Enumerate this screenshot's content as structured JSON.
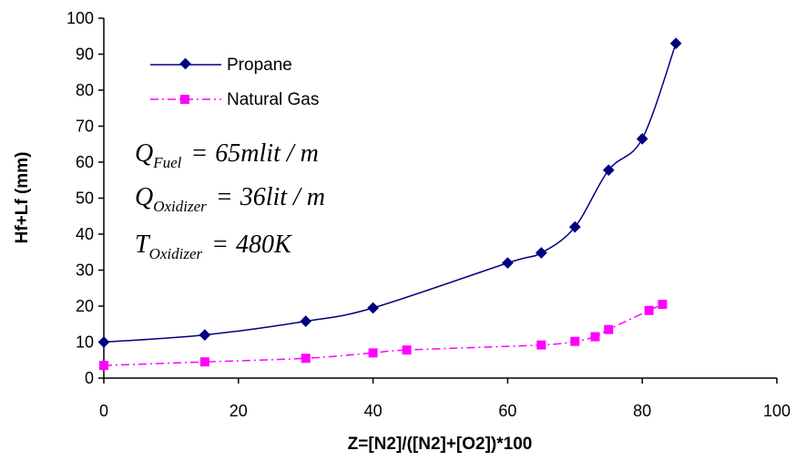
{
  "chart_data": {
    "type": "line",
    "xlabel": "Z=[N2]/([N2]+[O2])*100",
    "ylabel": "Hf+Lf (mm)",
    "xlim": [
      0,
      100
    ],
    "ylim": [
      0,
      100
    ],
    "x_ticks": [
      "0",
      "20",
      "40",
      "60",
      "80",
      "100"
    ],
    "y_ticks": [
      "0",
      "10",
      "20",
      "30",
      "40",
      "50",
      "60",
      "70",
      "80",
      "90",
      "100"
    ],
    "grid": false,
    "legend_position": "top-left",
    "series": [
      {
        "name": "Propane",
        "color": "#000080",
        "marker": "diamond",
        "line_style": "solid",
        "x": [
          0,
          15,
          30,
          40,
          60,
          65,
          70,
          75,
          80,
          85
        ],
        "y": [
          10,
          12,
          15.8,
          19.5,
          32,
          34.8,
          42,
          57.8,
          66.5,
          93
        ]
      },
      {
        "name": "Natural Gas",
        "color": "#FF00FF",
        "marker": "square",
        "line_style": "dash-dot",
        "x": [
          0,
          15,
          30,
          40,
          45,
          65,
          70,
          73,
          75,
          81,
          83
        ],
        "y": [
          3.5,
          4.5,
          5.5,
          7,
          7.8,
          9.2,
          10.2,
          11.5,
          13.5,
          18.8,
          20.5
        ]
      }
    ],
    "annotations": [
      {
        "var": "Q",
        "sub": "Fuel",
        "rhs": "65mlit / m"
      },
      {
        "var": "Q",
        "sub": "Oxidizer",
        "rhs": "36lit / m"
      },
      {
        "var": "T",
        "sub": "Oxidizer",
        "rhs": "480K"
      }
    ]
  }
}
